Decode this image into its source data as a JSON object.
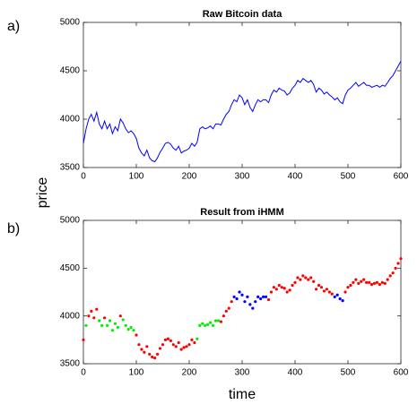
{
  "panel_labels": [
    "a)",
    "b)"
  ],
  "ylabel": "price",
  "xlabel": "time",
  "chart_data": [
    {
      "type": "line",
      "title": "Raw Bitcoin data",
      "color": "#0000ff",
      "xlim": [
        0,
        600
      ],
      "ylim": [
        3500,
        5000
      ],
      "xticks": [
        0,
        100,
        200,
        300,
        400,
        500,
        600
      ],
      "yticks": [
        3500,
        4000,
        4500,
        5000
      ],
      "x": [
        0,
        5,
        10,
        15,
        20,
        25,
        30,
        35,
        40,
        45,
        50,
        55,
        60,
        65,
        70,
        75,
        80,
        85,
        90,
        95,
        100,
        105,
        110,
        115,
        120,
        125,
        130,
        135,
        140,
        145,
        150,
        155,
        160,
        165,
        170,
        175,
        180,
        185,
        190,
        195,
        200,
        205,
        210,
        215,
        220,
        225,
        230,
        235,
        240,
        245,
        250,
        255,
        260,
        265,
        270,
        275,
        280,
        285,
        290,
        295,
        300,
        305,
        310,
        315,
        320,
        325,
        330,
        335,
        340,
        345,
        350,
        355,
        360,
        365,
        370,
        375,
        380,
        385,
        390,
        395,
        400,
        405,
        410,
        415,
        420,
        425,
        430,
        435,
        440,
        445,
        450,
        455,
        460,
        465,
        470,
        475,
        480,
        485,
        490,
        495,
        500,
        505,
        510,
        515,
        520,
        525,
        530,
        535,
        540,
        545,
        550,
        555,
        560,
        565,
        570,
        575,
        580,
        585,
        590,
        595,
        600
      ],
      "values": [
        3750,
        3900,
        4000,
        4050,
        3980,
        4070,
        3950,
        3900,
        3980,
        3900,
        3950,
        3850,
        3920,
        3880,
        4000,
        3960,
        3900,
        3860,
        3880,
        3850,
        3800,
        3700,
        3650,
        3620,
        3680,
        3600,
        3570,
        3560,
        3600,
        3660,
        3700,
        3750,
        3760,
        3740,
        3700,
        3680,
        3720,
        3650,
        3670,
        3680,
        3700,
        3750,
        3720,
        3760,
        3900,
        3920,
        3900,
        3910,
        3930,
        3900,
        3950,
        3950,
        3940,
        4000,
        4050,
        4080,
        4150,
        4200,
        4180,
        4250,
        4220,
        4150,
        4200,
        4120,
        4080,
        4150,
        4200,
        4180,
        4200,
        4200,
        4170,
        4250,
        4300,
        4280,
        4320,
        4300,
        4290,
        4250,
        4270,
        4320,
        4350,
        4400,
        4380,
        4420,
        4400,
        4380,
        4400,
        4360,
        4280,
        4320,
        4300,
        4260,
        4280,
        4250,
        4230,
        4200,
        4220,
        4180,
        4160,
        4250,
        4300,
        4320,
        4350,
        4380,
        4340,
        4360,
        4380,
        4350,
        4350,
        4330,
        4340,
        4350,
        4330,
        4350,
        4340,
        4380,
        4420,
        4450,
        4500,
        4550,
        4600
      ]
    },
    {
      "type": "scatter",
      "title": "Result from iHMM",
      "xlim": [
        0,
        600
      ],
      "ylim": [
        3500,
        5000
      ],
      "xticks": [
        0,
        100,
        200,
        300,
        400,
        500,
        600
      ],
      "yticks": [
        3500,
        4000,
        4500,
        5000
      ],
      "series": [
        {
          "color": "#ff0000",
          "x": [
            0,
            10,
            15,
            20,
            25,
            40,
            70,
            100,
            105,
            110,
            115,
            120,
            125,
            130,
            135,
            140,
            145,
            150,
            155,
            160,
            165,
            170,
            175,
            180,
            185,
            190,
            195,
            200,
            205,
            210,
            260,
            265,
            270,
            275,
            280,
            350,
            355,
            360,
            365,
            370,
            375,
            380,
            385,
            390,
            395,
            400,
            405,
            410,
            415,
            420,
            425,
            430,
            435,
            440,
            445,
            450,
            455,
            460,
            465,
            470,
            495,
            500,
            505,
            510,
            515,
            520,
            525,
            530,
            535,
            540,
            545,
            550,
            555,
            560,
            565,
            570,
            575,
            580,
            585,
            590,
            595,
            600
          ],
          "values": [
            3750,
            4000,
            4050,
            3980,
            4070,
            3980,
            4000,
            3800,
            3700,
            3650,
            3620,
            3680,
            3600,
            3570,
            3560,
            3600,
            3660,
            3700,
            3750,
            3760,
            3740,
            3700,
            3680,
            3720,
            3650,
            3670,
            3680,
            3700,
            3750,
            3720,
            3940,
            4000,
            4050,
            4080,
            4150,
            4170,
            4250,
            4300,
            4280,
            4320,
            4300,
            4290,
            4250,
            4270,
            4320,
            4350,
            4400,
            4380,
            4420,
            4400,
            4380,
            4400,
            4360,
            4280,
            4320,
            4300,
            4260,
            4280,
            4250,
            4230,
            4250,
            4300,
            4320,
            4350,
            4380,
            4340,
            4360,
            4380,
            4350,
            4350,
            4330,
            4340,
            4350,
            4330,
            4350,
            4340,
            4380,
            4420,
            4450,
            4500,
            4550,
            4600
          ]
        },
        {
          "color": "#00ee00",
          "x": [
            5,
            30,
            35,
            45,
            50,
            55,
            60,
            65,
            75,
            80,
            85,
            90,
            95,
            215,
            220,
            225,
            230,
            235,
            240,
            245,
            250,
            255
          ],
          "values": [
            3900,
            3950,
            3900,
            3900,
            3950,
            3850,
            3920,
            3880,
            3960,
            3900,
            3860,
            3880,
            3850,
            3760,
            3900,
            3920,
            3900,
            3910,
            3930,
            3900,
            3950,
            3950
          ]
        },
        {
          "color": "#0000ff",
          "x": [
            285,
            290,
            295,
            300,
            305,
            310,
            315,
            320,
            325,
            330,
            335,
            340,
            345,
            475,
            480,
            485,
            490
          ],
          "values": [
            4200,
            4180,
            4250,
            4220,
            4150,
            4200,
            4120,
            4080,
            4150,
            4200,
            4180,
            4200,
            4200,
            4200,
            4220,
            4180,
            4160
          ]
        }
      ]
    }
  ]
}
